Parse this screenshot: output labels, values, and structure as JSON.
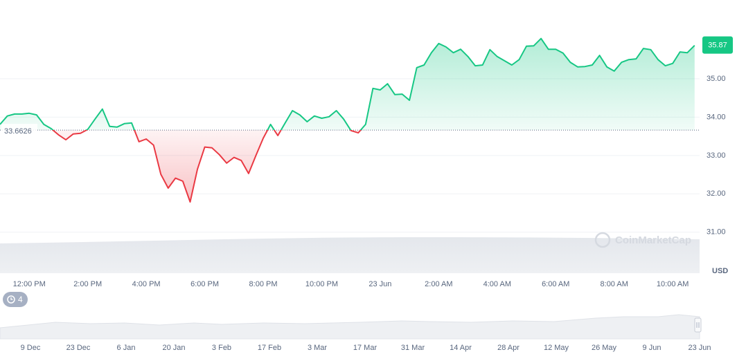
{
  "chart_data": {
    "type": "line",
    "x": [
      11,
      11.25,
      11.5,
      11.75,
      12,
      12.25,
      12.5,
      12.75,
      13,
      13.25,
      13.5,
      13.75,
      14,
      14.25,
      14.5,
      14.75,
      15,
      15.25,
      15.5,
      15.75,
      16,
      16.25,
      16.5,
      16.75,
      17,
      17.25,
      17.5,
      17.75,
      18,
      18.25,
      18.5,
      18.75,
      19,
      19.25,
      19.5,
      19.75,
      20,
      20.25,
      20.5,
      20.75,
      21,
      21.25,
      21.5,
      21.75,
      22,
      22.25,
      22.5,
      22.75,
      23,
      23.25,
      23.5,
      23.75,
      24,
      24.25,
      24.5,
      24.75,
      25,
      25.25,
      25.5,
      25.75,
      26,
      26.25,
      26.5,
      26.75,
      27,
      27.25,
      27.5,
      27.75,
      28,
      28.25,
      28.5,
      28.75,
      29,
      29.25,
      29.5,
      29.75,
      30,
      30.25,
      30.5,
      30.75,
      31,
      31.25,
      31.5,
      31.75,
      32,
      32.25,
      32.5,
      32.75,
      33,
      33.25,
      33.5,
      33.75,
      34,
      34.25,
      34.5,
      34.75
    ],
    "series": [
      {
        "name": "Price",
        "values": [
          33.81,
          34.03,
          34.08,
          34.08,
          34.1,
          34.06,
          33.81,
          33.7,
          33.54,
          33.41,
          33.56,
          33.58,
          33.68,
          33.95,
          34.21,
          33.76,
          33.74,
          33.83,
          33.85,
          33.36,
          33.43,
          33.27,
          32.51,
          32.15,
          32.41,
          32.33,
          31.79,
          32.64,
          33.22,
          33.2,
          33.02,
          32.8,
          32.95,
          32.87,
          32.53,
          33.0,
          33.45,
          33.81,
          33.52,
          33.85,
          34.17,
          34.06,
          33.88,
          34.03,
          33.97,
          34.01,
          34.17,
          33.95,
          33.65,
          33.59,
          33.81,
          34.75,
          34.71,
          34.87,
          34.59,
          34.6,
          34.44,
          35.29,
          35.36,
          35.68,
          35.92,
          35.83,
          35.68,
          35.77,
          35.58,
          35.34,
          35.36,
          35.76,
          35.58,
          35.47,
          35.36,
          35.5,
          35.85,
          35.86,
          36.05,
          35.77,
          35.77,
          35.67,
          35.43,
          35.31,
          35.32,
          35.36,
          35.61,
          35.31,
          35.2,
          35.43,
          35.5,
          35.52,
          35.79,
          35.76,
          35.5,
          35.34,
          35.4,
          35.7,
          35.68,
          35.87
        ]
      }
    ],
    "up_color": "#16c784",
    "down_color": "#ea3943",
    "baseline": 33.6626,
    "current_price": 35.87,
    "currency": "USD",
    "xlim": [
      11,
      34.92
    ],
    "ylim": [
      29.95,
      37.0
    ],
    "xticks": [
      {
        "value": 12,
        "label": "12:00 PM"
      },
      {
        "value": 14,
        "label": "2:00 PM"
      },
      {
        "value": 16,
        "label": "4:00 PM"
      },
      {
        "value": 18,
        "label": "6:00 PM"
      },
      {
        "value": 20,
        "label": "8:00 PM"
      },
      {
        "value": 22,
        "label": "10:00 PM"
      },
      {
        "value": 24,
        "label": "23 Jun"
      },
      {
        "value": 26,
        "label": "2:00 AM"
      },
      {
        "value": 28,
        "label": "4:00 AM"
      },
      {
        "value": 30,
        "label": "6:00 AM"
      },
      {
        "value": 32,
        "label": "8:00 AM"
      },
      {
        "value": 34,
        "label": "10:00 AM"
      }
    ],
    "yticks": [
      {
        "value": 31,
        "label": "31.00"
      },
      {
        "value": 32,
        "label": "32.00"
      },
      {
        "value": 33,
        "label": "33.00"
      },
      {
        "value": 34,
        "label": "34.00"
      },
      {
        "value": 35,
        "label": "35.00"
      }
    ],
    "grid": true
  },
  "watermark": "CoinMarketCap",
  "events_badge": 4,
  "navigator": {
    "labels": [
      "9 Dec",
      "23 Dec",
      "6 Jan",
      "20 Jan",
      "3 Feb",
      "17 Feb",
      "3 Mar",
      "17 Mar",
      "31 Mar",
      "14 Apr",
      "28 Apr",
      "12 May",
      "26 May",
      "9 Jun",
      "23 Jun"
    ]
  }
}
